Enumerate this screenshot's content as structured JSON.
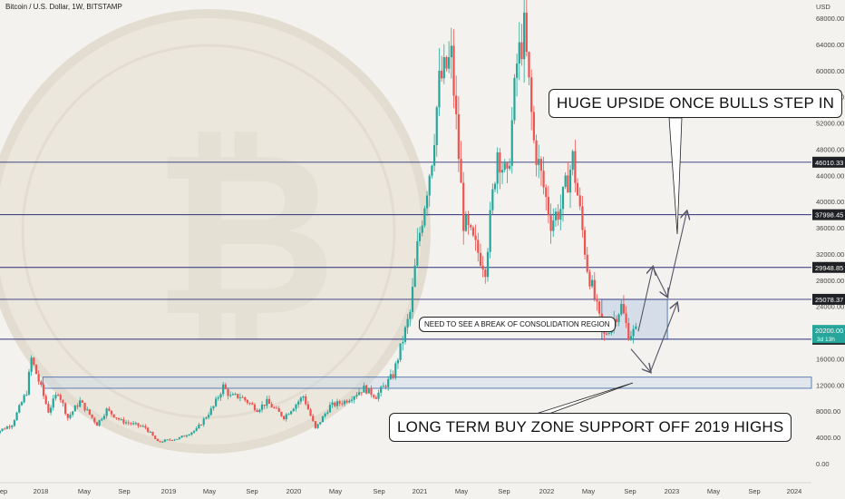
{
  "chart_data": {
    "type": "candlestick",
    "title": "Bitcoin / U.S. Dollar, 1W, BITSTAMP",
    "currency": "USD",
    "y_ticks": [
      0,
      4000,
      8000,
      12000,
      16000,
      20000,
      24000,
      28000,
      32000,
      36000,
      40000,
      44000,
      48000,
      52000,
      56000,
      60000,
      64000,
      68000
    ],
    "x_ticks": [
      "ep",
      "2018",
      "May",
      "Sep",
      "2019",
      "May",
      "Sep",
      "2020",
      "May",
      "Sep",
      "2021",
      "May",
      "Sep",
      "2022",
      "May",
      "Sep",
      "2023",
      "May",
      "Sep",
      "2024"
    ],
    "price_levels": [
      {
        "value": 46010.33,
        "label": "46010.33"
      },
      {
        "value": 37998.45,
        "label": "37998.45"
      },
      {
        "value": 29948.85,
        "label": "29948.85"
      },
      {
        "value": 25078.37,
        "label": "25078.37"
      },
      {
        "value": 18991.26,
        "label": "18991.26"
      }
    ],
    "current_price": {
      "value": 20200.0,
      "label": "20200.00",
      "countdown": "3d 13h"
    },
    "zones": [
      {
        "name": "consolidation",
        "low": 18991.26,
        "high": 25078.37
      },
      {
        "name": "long-term-buy-zone",
        "low": 11500,
        "high": 13200
      }
    ],
    "series_points": [
      [
        "2017-08-28",
        4500
      ],
      [
        "2017-10-23",
        6000
      ],
      [
        "2017-12-04",
        11000
      ],
      [
        "2017-12-18",
        16000
      ],
      [
        "2018-01-15",
        11500
      ],
      [
        "2018-02-05",
        8000
      ],
      [
        "2018-03-05",
        11000
      ],
      [
        "2018-04-02",
        7000
      ],
      [
        "2018-05-07",
        9500
      ],
      [
        "2018-06-25",
        6000
      ],
      [
        "2018-07-23",
        8200
      ],
      [
        "2018-09-03",
        6500
      ],
      [
        "2018-11-12",
        5500
      ],
      [
        "2018-12-17",
        3300
      ],
      [
        "2019-02-18",
        3900
      ],
      [
        "2019-04-08",
        5200
      ],
      [
        "2019-05-27",
        8700
      ],
      [
        "2019-06-24",
        11800
      ],
      [
        "2019-07-15",
        10200
      ],
      [
        "2019-08-12",
        10300
      ],
      [
        "2019-09-30",
        8300
      ],
      [
        "2019-10-28",
        9400
      ],
      [
        "2019-12-16",
        7100
      ],
      [
        "2020-02-10",
        10300
      ],
      [
        "2020-03-16",
        5300
      ],
      [
        "2020-04-27",
        8800
      ],
      [
        "2020-06-08",
        9500
      ],
      [
        "2020-08-03",
        11500
      ],
      [
        "2020-09-07",
        10300
      ],
      [
        "2020-10-26",
        13500
      ],
      [
        "2020-12-14",
        23000
      ],
      [
        "2021-01-04",
        33000
      ],
      [
        "2021-02-15",
        47000
      ],
      [
        "2021-03-08",
        58000
      ],
      [
        "2021-04-12",
        62000
      ],
      [
        "2021-05-17",
        37000
      ],
      [
        "2021-06-21",
        33000
      ],
      [
        "2021-07-19",
        30000
      ],
      [
        "2021-08-23",
        48000
      ],
      [
        "2021-09-20",
        43000
      ],
      [
        "2021-10-18",
        61000
      ],
      [
        "2021-11-08",
        66000
      ],
      [
        "2021-12-06",
        49000
      ],
      [
        "2022-01-24",
        37000
      ],
      [
        "2022-02-21",
        39000
      ],
      [
        "2022-03-28",
        46500
      ],
      [
        "2022-05-09",
        30000
      ],
      [
        "2022-06-13",
        22000
      ],
      [
        "2022-06-27",
        19500
      ],
      [
        "2022-08-15",
        24000
      ],
      [
        "2022-09-05",
        19800
      ],
      [
        "2022-09-26",
        20200
      ]
    ],
    "projections": [
      {
        "from": [
          "2022-10-03",
          20200
        ],
        "to": [
          "2022-11-14",
          30000
        ]
      },
      {
        "from": [
          "2022-11-14",
          30000
        ],
        "to": [
          "2022-12-26",
          25500
        ]
      },
      {
        "from": [
          "2022-12-26",
          25500
        ],
        "to": [
          "2023-02-20",
          38500
        ]
      },
      {
        "from": [
          "2022-09-12",
          17500
        ],
        "to": [
          "2022-11-07",
          14000
        ]
      },
      {
        "from": [
          "2022-11-07",
          14000
        ],
        "to": [
          "2023-01-23",
          24500
        ]
      }
    ]
  },
  "annotations": {
    "upside": "HUGE UPSIDE ONCE BULLS STEP IN",
    "consolidation": "NEED TO SEE A BREAK OF CONSOLIDATION REGION",
    "buy_zone": "LONG TERM BUY ZONE SUPPORT OFF 2019 HIGHS"
  },
  "colors": {
    "up": "#26a69a",
    "down": "#ef5350",
    "level_line": "#2c2f7a",
    "label_bg": "#1f2124",
    "current_bg": "#26a69a",
    "zone_fill": "#c9d6e6",
    "zone_stroke": "#3b63a8"
  }
}
